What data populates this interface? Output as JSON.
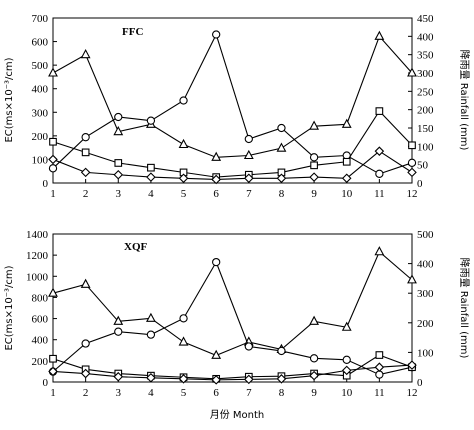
{
  "chart_data": [
    {
      "type": "line",
      "title": "FFC",
      "xlabel": "",
      "ylabel_left": "EC(ms×10⁻³/cm)",
      "ylabel_right": "降雨量 Rainfall (mm)",
      "x": [
        1,
        2,
        3,
        4,
        5,
        6,
        7,
        8,
        9,
        10,
        11,
        12
      ],
      "ylim_left": [
        0,
        700
      ],
      "yticks_left": [
        0,
        100,
        200,
        300,
        400,
        500,
        600,
        700
      ],
      "ylim_right": [
        0,
        450
      ],
      "yticks_right": [
        0,
        50,
        100,
        150,
        200,
        250,
        300,
        350,
        400,
        450
      ],
      "grid": false,
      "series": [
        {
          "axis": "right",
          "marker": "triangle",
          "values": [
            300,
            350,
            140,
            160,
            105,
            70,
            75,
            95,
            155,
            160,
            400,
            300
          ]
        },
        {
          "axis": "right",
          "marker": "circle",
          "values": [
            40,
            125,
            180,
            170,
            225,
            405,
            120,
            150,
            70,
            75,
            25,
            55
          ]
        },
        {
          "axis": "left",
          "marker": "square",
          "values": [
            175,
            130,
            85,
            65,
            45,
            25,
            35,
            45,
            75,
            90,
            305,
            160
          ]
        },
        {
          "axis": "left",
          "marker": "diamond",
          "values": [
            100,
            45,
            35,
            25,
            20,
            15,
            20,
            20,
            25,
            20,
            135,
            45
          ]
        }
      ]
    },
    {
      "type": "line",
      "title": "XQF",
      "xlabel": "月份 Month",
      "ylabel_left": "EC(ms×10⁻³/cm)",
      "ylabel_right": "降雨量 Rainfall (mm)",
      "x": [
        1,
        2,
        3,
        4,
        5,
        6,
        7,
        8,
        9,
        10,
        11,
        12
      ],
      "ylim_left": [
        0,
        1400
      ],
      "yticks_left": [
        0,
        200,
        400,
        600,
        800,
        1000,
        1200,
        1400
      ],
      "ylim_right": [
        0,
        500
      ],
      "yticks_right": [
        0,
        100,
        200,
        300,
        400,
        500
      ],
      "grid": false,
      "series": [
        {
          "axis": "right",
          "marker": "triangle",
          "values": [
            300,
            330,
            205,
            215,
            135,
            90,
            135,
            110,
            205,
            185,
            440,
            345
          ]
        },
        {
          "axis": "right",
          "marker": "circle",
          "values": [
            35,
            130,
            170,
            160,
            215,
            405,
            120,
            105,
            80,
            75,
            25,
            50
          ]
        },
        {
          "axis": "left",
          "marker": "square",
          "values": [
            220,
            120,
            80,
            60,
            45,
            30,
            50,
            55,
            80,
            60,
            255,
            140
          ]
        },
        {
          "axis": "left",
          "marker": "diamond",
          "values": [
            100,
            80,
            50,
            40,
            30,
            20,
            25,
            30,
            60,
            110,
            140,
            160
          ]
        }
      ]
    }
  ]
}
